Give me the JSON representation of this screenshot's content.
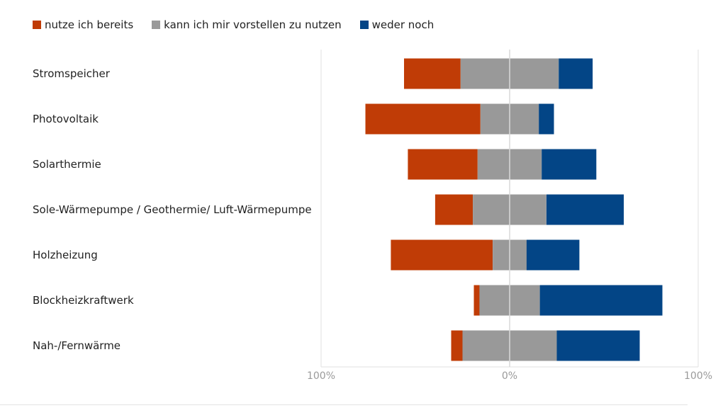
{
  "chart_data": {
    "type": "bar",
    "orientation": "horizontal",
    "stacked": "diverging",
    "categories": [
      "Stromspeicher",
      "Photovoltaik",
      "Solarthermie",
      "Sole-Wärmepumpe / Geothermie/ Luft-Wärmepumpe",
      "Holzheizung",
      "Blockheizkraftwerk",
      "Nah-/Fernwärme"
    ],
    "series": [
      {
        "name": "nutze ich bereits",
        "color": "#C03C06",
        "values": [
          30,
          61,
          37,
          20,
          54,
          3,
          6
        ]
      },
      {
        "name": "kann ich mir vorstellen zu nutzen",
        "color": "#999999",
        "values": [
          52,
          31,
          34,
          39,
          18,
          32,
          50
        ]
      },
      {
        "name": "weder noch",
        "color": "#034586",
        "values": [
          18,
          8,
          29,
          41,
          28,
          65,
          44
        ]
      }
    ],
    "xticks": [
      "100%",
      "0%",
      "100%"
    ],
    "xlim": [
      -100,
      100
    ],
    "legend": "top-left",
    "grid": false
  }
}
